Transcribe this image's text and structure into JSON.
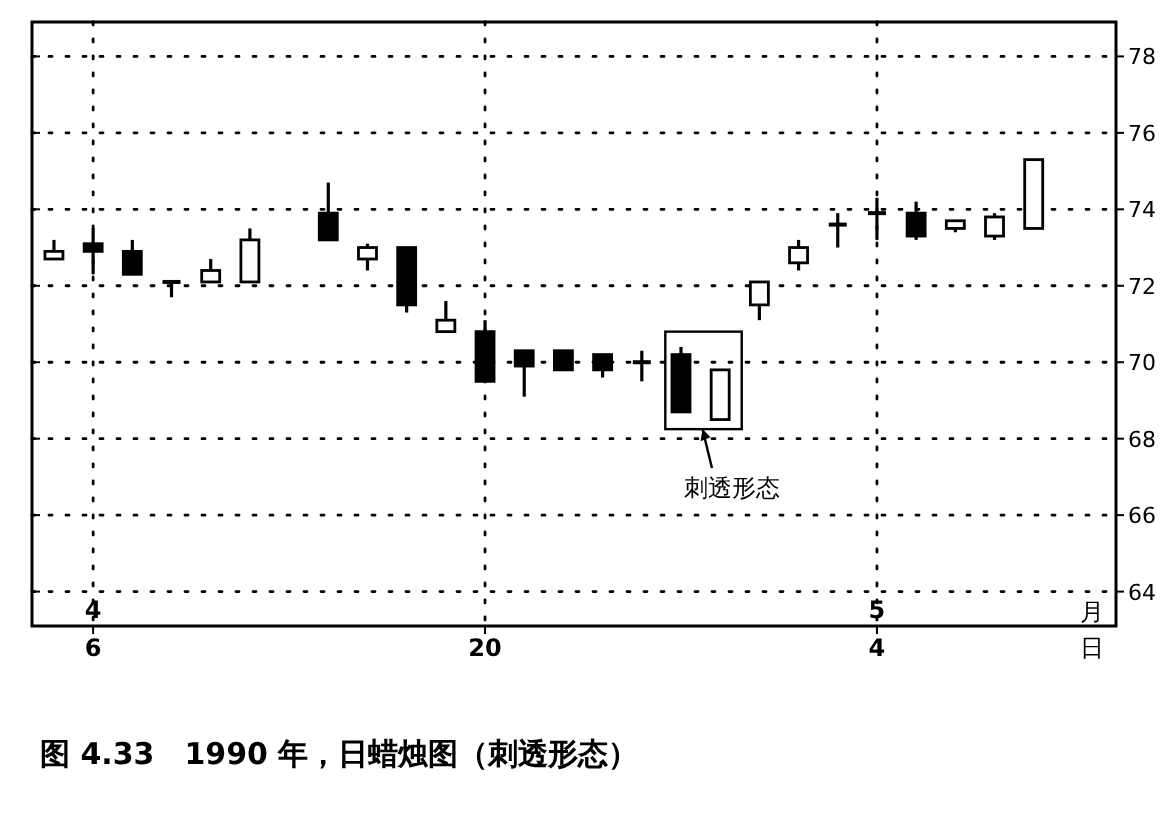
{
  "chart_data": {
    "type": "candlestick",
    "title": "图 4.33　1990 年，日蜡烛图（刺透形态）",
    "xlabel": "月日",
    "categories": [
      null,
      "6",
      null,
      null,
      null,
      null,
      null,
      null,
      null,
      null,
      null,
      "20",
      null,
      null,
      null,
      null,
      null,
      null,
      null,
      null,
      null,
      "4",
      null,
      null,
      null,
      null
    ],
    "ohlc": [
      [
        72.7,
        73.2,
        72.7,
        72.9
      ],
      [
        73.1,
        73.5,
        72.3,
        72.9
      ],
      [
        72.9,
        73.2,
        72.3,
        72.3
      ],
      [
        72.1,
        72.1,
        71.7,
        72.1
      ],
      [
        72.1,
        72.7,
        72.1,
        72.4
      ],
      [
        72.1,
        73.5,
        72.1,
        73.2
      ],
      null,
      [
        73.9,
        74.7,
        73.2,
        73.2
      ],
      [
        72.7,
        73.1,
        72.4,
        73.0
      ],
      [
        73.0,
        73.0,
        71.3,
        71.5
      ],
      [
        70.8,
        71.6,
        70.8,
        71.1
      ],
      [
        70.8,
        71.1,
        69.5,
        69.5
      ],
      [
        70.3,
        70.3,
        69.1,
        69.9
      ],
      [
        70.3,
        70.3,
        69.8,
        69.8
      ],
      [
        70.2,
        70.2,
        69.6,
        69.8
      ],
      [
        70.0,
        70.3,
        69.5,
        70.0
      ],
      [
        70.2,
        70.4,
        68.7,
        68.7
      ],
      [
        68.5,
        69.8,
        68.5,
        69.8
      ],
      [
        71.5,
        72.1,
        71.1,
        72.1
      ],
      [
        72.6,
        73.2,
        72.4,
        73.0
      ],
      [
        73.6,
        73.9,
        73.0,
        73.6
      ],
      [
        73.9,
        74.3,
        73.2,
        73.9
      ],
      [
        73.9,
        74.2,
        73.2,
        73.3
      ],
      [
        73.5,
        73.7,
        73.4,
        73.7
      ],
      [
        73.3,
        73.9,
        73.2,
        73.8
      ],
      [
        73.5,
        75.3,
        73.5,
        75.3
      ]
    ],
    "ylim": [
      63.1,
      78.9
    ],
    "yticks": [
      64,
      66,
      68,
      70,
      72,
      74,
      76,
      78
    ],
    "grid": true,
    "annotations": [
      "刺透形态",
      "4",
      "5"
    ]
  }
}
